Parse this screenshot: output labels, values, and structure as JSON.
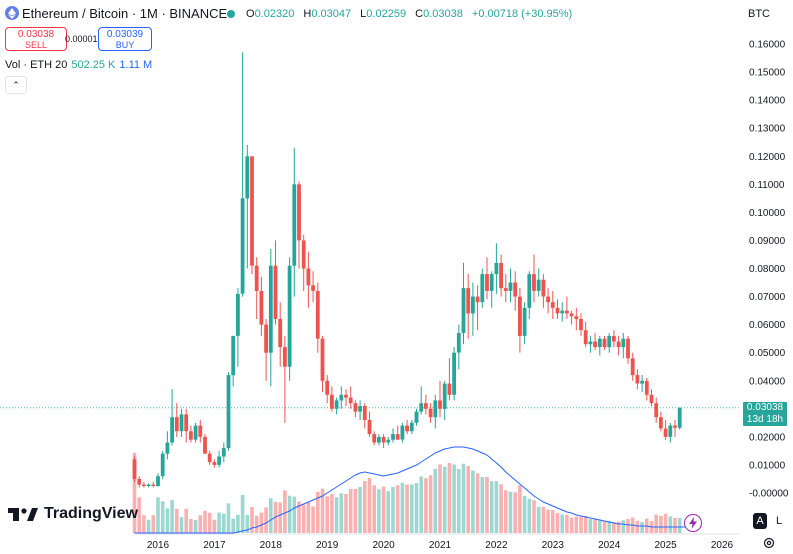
{
  "header": {
    "symbol_title": "Ethereum / Bitcoin · 1M · BINANCE",
    "ohlc": {
      "open_label": "O",
      "open": "0.02320",
      "high_label": "H",
      "high": "0.03047",
      "low_label": "L",
      "low": "0.02259",
      "close_label": "C",
      "close": "0.03038",
      "change": "+0.00718 (+30.95%)"
    },
    "currency": "BTC"
  },
  "trade": {
    "sell_price": "0.03038",
    "sell_label": "SELL",
    "spread": "0.00001",
    "buy_price": "0.03039",
    "buy_label": "BUY"
  },
  "volume_legend": {
    "label": "Vol · ETH 20",
    "value": "502.25 K",
    "ma_value": "1.11 M"
  },
  "collapse_glyph": "⌃",
  "brand": "TradingView",
  "axis_buttons": {
    "auto": "A",
    "log": "L"
  },
  "price_tag": {
    "price": "0.03038",
    "countdown": "13d 18h"
  },
  "colors": {
    "up": "#26a69a",
    "down": "#ef5350",
    "volume_ma": "#2962ff",
    "accent": "#9c27b0"
  },
  "icons": [
    "ethereum-logo-icon",
    "live-status-dot-icon",
    "chevron-up-icon",
    "tradingview-logo-icon",
    "lightning-icon",
    "settings-gear-icon"
  ],
  "chart_data": {
    "type": "candlestick",
    "y_ticks": [
      0.16,
      0.15,
      0.14,
      0.13,
      0.12,
      0.11,
      0.1,
      0.09,
      0.08,
      0.07,
      0.06,
      0.05,
      0.04,
      0.03,
      0.02,
      0.01,
      0.0
    ],
    "y_tick_labels": [
      "0.16000",
      "0.15000",
      "0.14000",
      "0.13000",
      "0.12000",
      "0.11000",
      "0.10000",
      "0.09000",
      "0.08000",
      "0.07000",
      "0.06000",
      "0.05000",
      "0.04000",
      "0.03000",
      "0.02000",
      "0.01000",
      "-0.00000"
    ],
    "ylim": [
      -0.002,
      0.164
    ],
    "x_tick_labels": [
      "2016",
      "2017",
      "2018",
      "2019",
      "2020",
      "2021",
      "2022",
      "2023",
      "2024",
      "2025",
      "2026"
    ],
    "x_start": "2015-08",
    "last_price": 0.03038,
    "candles": [
      {
        "o": 0.012,
        "h": 0.013,
        "l": 0.004,
        "c": 0.005
      },
      {
        "o": 0.005,
        "h": 0.006,
        "l": 0.002,
        "c": 0.003
      },
      {
        "o": 0.003,
        "h": 0.004,
        "l": 0.002,
        "c": 0.0025
      },
      {
        "o": 0.0025,
        "h": 0.0035,
        "l": 0.002,
        "c": 0.003
      },
      {
        "o": 0.003,
        "h": 0.004,
        "l": 0.002,
        "c": 0.0025
      },
      {
        "o": 0.0025,
        "h": 0.007,
        "l": 0.0022,
        "c": 0.006
      },
      {
        "o": 0.006,
        "h": 0.015,
        "l": 0.005,
        "c": 0.014
      },
      {
        "o": 0.014,
        "h": 0.022,
        "l": 0.012,
        "c": 0.018
      },
      {
        "o": 0.018,
        "h": 0.037,
        "l": 0.017,
        "c": 0.027
      },
      {
        "o": 0.027,
        "h": 0.032,
        "l": 0.02,
        "c": 0.022
      },
      {
        "o": 0.022,
        "h": 0.03,
        "l": 0.02,
        "c": 0.028
      },
      {
        "o": 0.028,
        "h": 0.03,
        "l": 0.018,
        "c": 0.022
      },
      {
        "o": 0.022,
        "h": 0.024,
        "l": 0.018,
        "c": 0.019
      },
      {
        "o": 0.019,
        "h": 0.025,
        "l": 0.018,
        "c": 0.024
      },
      {
        "o": 0.024,
        "h": 0.026,
        "l": 0.018,
        "c": 0.02
      },
      {
        "o": 0.02,
        "h": 0.021,
        "l": 0.014,
        "c": 0.014
      },
      {
        "o": 0.014,
        "h": 0.015,
        "l": 0.01,
        "c": 0.011
      },
      {
        "o": 0.011,
        "h": 0.012,
        "l": 0.009,
        "c": 0.01
      },
      {
        "o": 0.01,
        "h": 0.015,
        "l": 0.009,
        "c": 0.013
      },
      {
        "o": 0.013,
        "h": 0.018,
        "l": 0.011,
        "c": 0.016
      },
      {
        "o": 0.016,
        "h": 0.043,
        "l": 0.015,
        "c": 0.042
      },
      {
        "o": 0.042,
        "h": 0.056,
        "l": 0.038,
        "c": 0.056
      },
      {
        "o": 0.056,
        "h": 0.073,
        "l": 0.045,
        "c": 0.071
      },
      {
        "o": 0.071,
        "h": 0.157,
        "l": 0.07,
        "c": 0.105
      },
      {
        "o": 0.105,
        "h": 0.124,
        "l": 0.08,
        "c": 0.12
      },
      {
        "o": 0.12,
        "h": 0.12,
        "l": 0.078,
        "c": 0.081
      },
      {
        "o": 0.081,
        "h": 0.084,
        "l": 0.062,
        "c": 0.072
      },
      {
        "o": 0.072,
        "h": 0.077,
        "l": 0.056,
        "c": 0.06
      },
      {
        "o": 0.06,
        "h": 0.062,
        "l": 0.04,
        "c": 0.05
      },
      {
        "o": 0.05,
        "h": 0.087,
        "l": 0.038,
        "c": 0.081
      },
      {
        "o": 0.081,
        "h": 0.09,
        "l": 0.06,
        "c": 0.062
      },
      {
        "o": 0.062,
        "h": 0.068,
        "l": 0.045,
        "c": 0.052
      },
      {
        "o": 0.052,
        "h": 0.056,
        "l": 0.025,
        "c": 0.045
      },
      {
        "o": 0.045,
        "h": 0.084,
        "l": 0.04,
        "c": 0.081
      },
      {
        "o": 0.081,
        "h": 0.123,
        "l": 0.07,
        "c": 0.11
      },
      {
        "o": 0.11,
        "h": 0.111,
        "l": 0.08,
        "c": 0.09
      },
      {
        "o": 0.09,
        "h": 0.092,
        "l": 0.072,
        "c": 0.08
      },
      {
        "o": 0.08,
        "h": 0.086,
        "l": 0.066,
        "c": 0.074
      },
      {
        "o": 0.074,
        "h": 0.079,
        "l": 0.068,
        "c": 0.072
      },
      {
        "o": 0.072,
        "h": 0.075,
        "l": 0.05,
        "c": 0.055
      },
      {
        "o": 0.055,
        "h": 0.056,
        "l": 0.036,
        "c": 0.04
      },
      {
        "o": 0.04,
        "h": 0.042,
        "l": 0.032,
        "c": 0.035
      },
      {
        "o": 0.035,
        "h": 0.038,
        "l": 0.029,
        "c": 0.03
      },
      {
        "o": 0.03,
        "h": 0.034,
        "l": 0.028,
        "c": 0.033
      },
      {
        "o": 0.033,
        "h": 0.038,
        "l": 0.03,
        "c": 0.035
      },
      {
        "o": 0.035,
        "h": 0.037,
        "l": 0.031,
        "c": 0.034
      },
      {
        "o": 0.034,
        "h": 0.038,
        "l": 0.03,
        "c": 0.032
      },
      {
        "o": 0.032,
        "h": 0.033,
        "l": 0.027,
        "c": 0.029
      },
      {
        "o": 0.029,
        "h": 0.033,
        "l": 0.026,
        "c": 0.031
      },
      {
        "o": 0.031,
        "h": 0.032,
        "l": 0.023,
        "c": 0.026
      },
      {
        "o": 0.026,
        "h": 0.029,
        "l": 0.02,
        "c": 0.021
      },
      {
        "o": 0.021,
        "h": 0.022,
        "l": 0.017,
        "c": 0.018
      },
      {
        "o": 0.018,
        "h": 0.021,
        "l": 0.017,
        "c": 0.02
      },
      {
        "o": 0.02,
        "h": 0.021,
        "l": 0.016,
        "c": 0.018
      },
      {
        "o": 0.018,
        "h": 0.02,
        "l": 0.017,
        "c": 0.019
      },
      {
        "o": 0.019,
        "h": 0.023,
        "l": 0.018,
        "c": 0.021
      },
      {
        "o": 0.021,
        "h": 0.024,
        "l": 0.019,
        "c": 0.019
      },
      {
        "o": 0.019,
        "h": 0.025,
        "l": 0.018,
        "c": 0.024
      },
      {
        "o": 0.024,
        "h": 0.026,
        "l": 0.021,
        "c": 0.022
      },
      {
        "o": 0.022,
        "h": 0.026,
        "l": 0.021,
        "c": 0.025
      },
      {
        "o": 0.025,
        "h": 0.03,
        "l": 0.024,
        "c": 0.029
      },
      {
        "o": 0.029,
        "h": 0.038,
        "l": 0.028,
        "c": 0.032
      },
      {
        "o": 0.032,
        "h": 0.035,
        "l": 0.028,
        "c": 0.03
      },
      {
        "o": 0.03,
        "h": 0.032,
        "l": 0.025,
        "c": 0.027
      },
      {
        "o": 0.027,
        "h": 0.035,
        "l": 0.023,
        "c": 0.033
      },
      {
        "o": 0.033,
        "h": 0.04,
        "l": 0.027,
        "c": 0.03
      },
      {
        "o": 0.03,
        "h": 0.04,
        "l": 0.026,
        "c": 0.039
      },
      {
        "o": 0.039,
        "h": 0.048,
        "l": 0.033,
        "c": 0.035
      },
      {
        "o": 0.035,
        "h": 0.052,
        "l": 0.033,
        "c": 0.05
      },
      {
        "o": 0.05,
        "h": 0.06,
        "l": 0.044,
        "c": 0.057
      },
      {
        "o": 0.057,
        "h": 0.082,
        "l": 0.053,
        "c": 0.073
      },
      {
        "o": 0.073,
        "h": 0.078,
        "l": 0.055,
        "c": 0.064
      },
      {
        "o": 0.064,
        "h": 0.075,
        "l": 0.056,
        "c": 0.07
      },
      {
        "o": 0.07,
        "h": 0.074,
        "l": 0.058,
        "c": 0.068
      },
      {
        "o": 0.068,
        "h": 0.08,
        "l": 0.066,
        "c": 0.078
      },
      {
        "o": 0.078,
        "h": 0.084,
        "l": 0.069,
        "c": 0.072
      },
      {
        "o": 0.072,
        "h": 0.079,
        "l": 0.066,
        "c": 0.078
      },
      {
        "o": 0.078,
        "h": 0.089,
        "l": 0.071,
        "c": 0.082
      },
      {
        "o": 0.082,
        "h": 0.085,
        "l": 0.07,
        "c": 0.073
      },
      {
        "o": 0.073,
        "h": 0.078,
        "l": 0.068,
        "c": 0.072
      },
      {
        "o": 0.072,
        "h": 0.08,
        "l": 0.068,
        "c": 0.075
      },
      {
        "o": 0.075,
        "h": 0.079,
        "l": 0.065,
        "c": 0.07
      },
      {
        "o": 0.07,
        "h": 0.073,
        "l": 0.05,
        "c": 0.056
      },
      {
        "o": 0.056,
        "h": 0.068,
        "l": 0.053,
        "c": 0.066
      },
      {
        "o": 0.066,
        "h": 0.079,
        "l": 0.062,
        "c": 0.078
      },
      {
        "o": 0.078,
        "h": 0.085,
        "l": 0.068,
        "c": 0.072
      },
      {
        "o": 0.072,
        "h": 0.08,
        "l": 0.07,
        "c": 0.076
      },
      {
        "o": 0.076,
        "h": 0.078,
        "l": 0.066,
        "c": 0.07
      },
      {
        "o": 0.07,
        "h": 0.073,
        "l": 0.064,
        "c": 0.068
      },
      {
        "o": 0.068,
        "h": 0.072,
        "l": 0.062,
        "c": 0.066
      },
      {
        "o": 0.066,
        "h": 0.069,
        "l": 0.062,
        "c": 0.064
      },
      {
        "o": 0.064,
        "h": 0.068,
        "l": 0.061,
        "c": 0.065
      },
      {
        "o": 0.065,
        "h": 0.07,
        "l": 0.062,
        "c": 0.064
      },
      {
        "o": 0.064,
        "h": 0.065,
        "l": 0.06,
        "c": 0.063
      },
      {
        "o": 0.063,
        "h": 0.066,
        "l": 0.058,
        "c": 0.062
      },
      {
        "o": 0.062,
        "h": 0.064,
        "l": 0.056,
        "c": 0.058
      },
      {
        "o": 0.058,
        "h": 0.061,
        "l": 0.052,
        "c": 0.053
      },
      {
        "o": 0.053,
        "h": 0.056,
        "l": 0.05,
        "c": 0.054
      },
      {
        "o": 0.054,
        "h": 0.057,
        "l": 0.051,
        "c": 0.052
      },
      {
        "o": 0.052,
        "h": 0.056,
        "l": 0.049,
        "c": 0.055
      },
      {
        "o": 0.055,
        "h": 0.056,
        "l": 0.051,
        "c": 0.052
      },
      {
        "o": 0.052,
        "h": 0.057,
        "l": 0.05,
        "c": 0.056
      },
      {
        "o": 0.056,
        "h": 0.058,
        "l": 0.052,
        "c": 0.054
      },
      {
        "o": 0.054,
        "h": 0.056,
        "l": 0.049,
        "c": 0.052
      },
      {
        "o": 0.052,
        "h": 0.057,
        "l": 0.048,
        "c": 0.055
      },
      {
        "o": 0.055,
        "h": 0.056,
        "l": 0.046,
        "c": 0.048
      },
      {
        "o": 0.048,
        "h": 0.05,
        "l": 0.04,
        "c": 0.042
      },
      {
        "o": 0.042,
        "h": 0.044,
        "l": 0.037,
        "c": 0.039
      },
      {
        "o": 0.039,
        "h": 0.042,
        "l": 0.036,
        "c": 0.04
      },
      {
        "o": 0.04,
        "h": 0.041,
        "l": 0.033,
        "c": 0.035
      },
      {
        "o": 0.035,
        "h": 0.037,
        "l": 0.031,
        "c": 0.032
      },
      {
        "o": 0.032,
        "h": 0.034,
        "l": 0.025,
        "c": 0.027
      },
      {
        "o": 0.027,
        "h": 0.029,
        "l": 0.022,
        "c": 0.023
      },
      {
        "o": 0.023,
        "h": 0.026,
        "l": 0.019,
        "c": 0.02
      },
      {
        "o": 0.02,
        "h": 0.025,
        "l": 0.018,
        "c": 0.024
      },
      {
        "o": 0.024,
        "h": 0.026,
        "l": 0.02,
        "c": 0.0232
      },
      {
        "o": 0.0232,
        "h": 0.03047,
        "l": 0.02259,
        "c": 0.03038
      }
    ],
    "volume_ma": [
      0.0,
      0.0,
      0.0,
      0.0,
      0.0,
      0.0,
      0.0,
      0.0,
      0.0,
      0.0,
      0.0,
      0.0,
      0.0,
      0.0,
      0.0,
      0.0,
      0.0,
      0.0,
      0.0,
      0.0,
      0.0,
      0.0,
      0.01,
      0.02,
      0.03,
      0.05,
      0.06,
      0.08,
      0.1,
      0.13,
      0.16,
      0.18,
      0.2,
      0.22,
      0.25,
      0.27,
      0.29,
      0.31,
      0.33,
      0.35,
      0.37,
      0.4,
      0.43,
      0.46,
      0.49,
      0.52,
      0.55,
      0.58,
      0.6,
      0.61,
      0.6,
      0.59,
      0.58,
      0.57,
      0.58,
      0.59,
      0.6,
      0.62,
      0.64,
      0.66,
      0.68,
      0.71,
      0.74,
      0.77,
      0.8,
      0.82,
      0.84,
      0.85,
      0.86,
      0.86,
      0.86,
      0.85,
      0.84,
      0.82,
      0.8,
      0.78,
      0.74,
      0.7,
      0.66,
      0.61,
      0.57,
      0.53,
      0.49,
      0.45,
      0.41,
      0.37,
      0.34,
      0.31,
      0.29,
      0.27,
      0.25,
      0.23,
      0.21,
      0.2,
      0.18,
      0.17,
      0.16,
      0.15,
      0.14,
      0.13,
      0.12,
      0.11,
      0.1,
      0.09,
      0.09,
      0.08,
      0.08,
      0.07,
      0.07,
      0.07,
      0.06,
      0.06,
      0.06,
      0.06,
      0.06,
      0.06,
      0.06,
      0.06,
      0.06
    ]
  }
}
